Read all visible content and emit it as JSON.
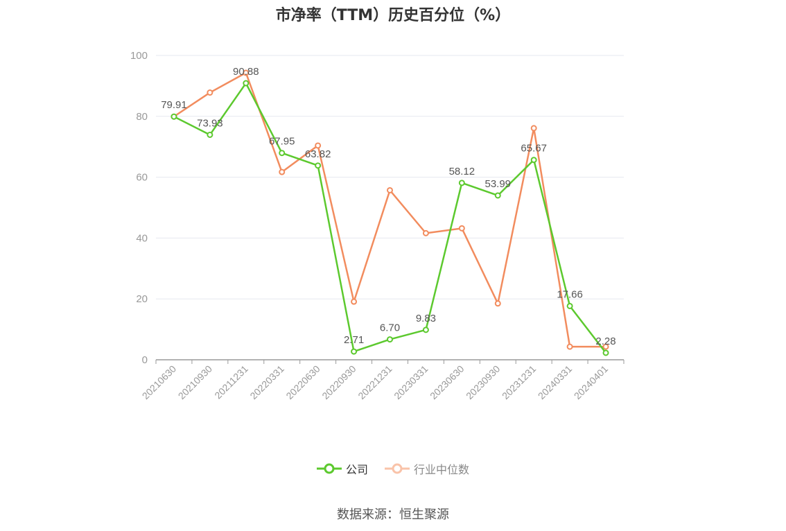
{
  "title": "市净率（TTM）历史百分位（%）",
  "source": "数据来源：恒生聚源",
  "legend": {
    "company": "公司",
    "industry": "行业中位数"
  },
  "colors": {
    "company": "#5cc92e",
    "industry": "#f28c5e"
  },
  "chart_data": {
    "type": "line",
    "title": "市净率（TTM）历史百分位（%）",
    "xlabel": "",
    "ylabel": "",
    "ylim": [
      0,
      100
    ],
    "yticks": [
      0,
      20,
      40,
      60,
      80,
      100
    ],
    "grid": true,
    "legend_position": "bottom",
    "categories": [
      "20210630",
      "20210930",
      "20211231",
      "20220331",
      "20220630",
      "20220930",
      "20221231",
      "20230331",
      "20230630",
      "20230930",
      "20231231",
      "20240331",
      "20240401"
    ],
    "series": [
      {
        "name": "公司",
        "values": [
          79.91,
          73.93,
          90.88,
          67.95,
          63.82,
          2.71,
          6.7,
          9.83,
          58.12,
          53.99,
          65.67,
          17.66,
          2.28
        ],
        "labels": [
          "79.91",
          "73.93",
          "90.88",
          "67.95",
          "63.82",
          "2.71",
          "6.70",
          "9.83",
          "58.12",
          "53.99",
          "65.67",
          "17.66",
          "2.28"
        ]
      },
      {
        "name": "行业中位数",
        "values": [
          79.91,
          87.8,
          94.3,
          61.7,
          70.4,
          19.1,
          55.7,
          41.6,
          43.2,
          18.5,
          76.1,
          4.3,
          4.3
        ]
      }
    ]
  }
}
